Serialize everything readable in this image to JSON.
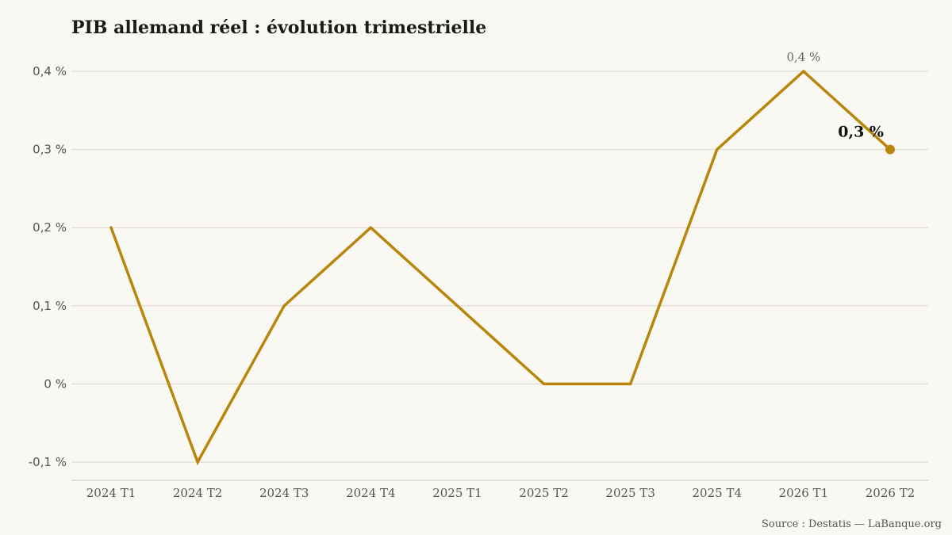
{
  "chart_data": {
    "type": "line",
    "title": "PIB allemand réel : évolution trimestrielle",
    "categories": [
      "2024 T1",
      "2024 T2",
      "2024 T3",
      "2024 T4",
      "2025 T1",
      "2025 T2",
      "2025 T3",
      "2025 T4",
      "2026 T1",
      "2026 T2"
    ],
    "series": [
      {
        "values": [
          0.2,
          -0.1,
          0.1,
          0.2,
          0.1,
          0.0,
          0.0,
          0.3,
          0.4,
          0.3
        ]
      }
    ],
    "ylim": [
      -0.1,
      0.4
    ],
    "yticks": [
      -0.1,
      0,
      0.1,
      0.2,
      0.3,
      0.4
    ],
    "ytick_labels": [
      "-0,1 %",
      "0 %",
      "0,1 %",
      "0,2 %",
      "0,3 %",
      "0,4 %"
    ],
    "annotations": {
      "peak_label": "0,4 %",
      "last_label": "0,3 %"
    },
    "grid": "horizontal",
    "line_color": "#b8860b",
    "source": "Source : Destatis — LaBanque.org"
  }
}
